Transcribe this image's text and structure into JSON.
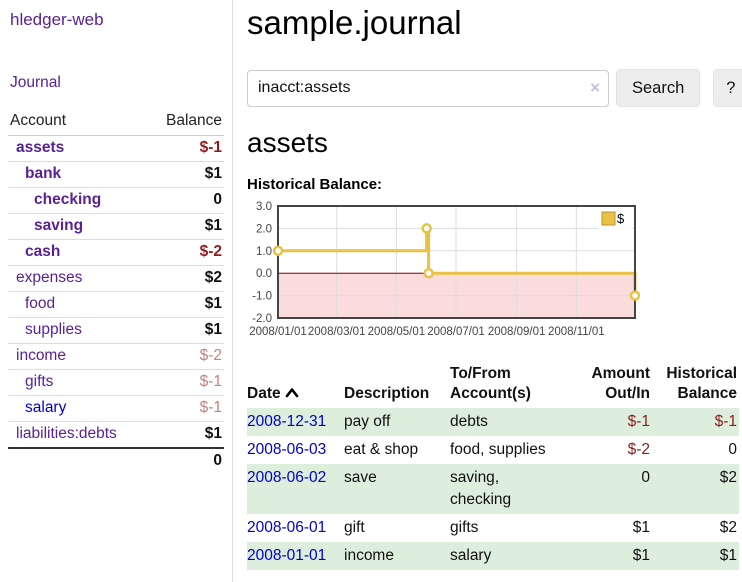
{
  "sidebar": {
    "brand": "hledger-web",
    "nav": {
      "journal": "Journal"
    },
    "accounts_table": {
      "headers": {
        "account": "Account",
        "balance": "Balance"
      },
      "rows": [
        {
          "name": "assets",
          "name_class": "nm lvl0 emph",
          "balance": "$-1",
          "amt_class": "amt neg-strong"
        },
        {
          "name": "bank",
          "name_class": "nm lvl1 emph",
          "balance": "$1",
          "amt_class": "amt"
        },
        {
          "name": "checking",
          "name_class": "nm lvl2 emph",
          "balance": "0",
          "amt_class": "amt"
        },
        {
          "name": "saving",
          "name_class": "nm lvl2 emph",
          "balance": "$1",
          "amt_class": "amt"
        },
        {
          "name": "cash",
          "name_class": "nm lvl1 emph",
          "balance": "$-2",
          "amt_class": "amt neg-strong"
        },
        {
          "name": "expenses",
          "name_class": "nm lvl0",
          "balance": "$2",
          "amt_class": "amt"
        },
        {
          "name": "food",
          "name_class": "nm lvl1",
          "balance": "$1",
          "amt_class": "amt"
        },
        {
          "name": "supplies",
          "name_class": "nm lvl1",
          "balance": "$1",
          "amt_class": "amt"
        },
        {
          "name": "income",
          "name_class": "nm lvl0",
          "balance": "$-2",
          "amt_class": "amt neg-light"
        },
        {
          "name": "gifts",
          "name_class": "nm lvl1",
          "balance": "$-1",
          "amt_class": "amt neg-light"
        },
        {
          "name": "salary",
          "name_class": "nm lvl1 blue",
          "balance": "$-1",
          "amt_class": "amt neg-light"
        },
        {
          "name": "liabilities:debts",
          "name_class": "nm lvl0",
          "balance": "$1",
          "amt_class": "amt"
        }
      ],
      "total": "0"
    }
  },
  "main": {
    "title": "sample.journal",
    "search": {
      "value": "inacct:assets",
      "clear_icon": "×",
      "button_label": "Search",
      "help_label": "?"
    },
    "account_heading": "assets",
    "chart_label": "Historical Balance:",
    "register": {
      "headers": {
        "date": "Date",
        "description": "Description",
        "accounts": "To/From Account(s)",
        "amount": "Amount Out/In",
        "balance": "Historical Balance"
      },
      "rows": [
        {
          "row_class": "green",
          "date": "2008-12-31",
          "description": "pay off",
          "accounts": "debts",
          "amount": "$-1",
          "amount_class": "r cell-neg",
          "balance": "$-1",
          "balance_class": "r cell-neg"
        },
        {
          "row_class": "",
          "date": "2008-06-03",
          "description": "eat & shop",
          "accounts": "food, supplies",
          "amount": "$-2",
          "amount_class": "r cell-neg",
          "balance": "0",
          "balance_class": "r"
        },
        {
          "row_class": "green",
          "date": "2008-06-02",
          "description": "save",
          "accounts": "saving, checking",
          "amount": "0",
          "amount_class": "r",
          "balance": "$2",
          "balance_class": "r"
        },
        {
          "row_class": "",
          "date": "2008-06-01",
          "description": "gift",
          "accounts": "gifts",
          "amount": "$1",
          "amount_class": "r",
          "balance": "$2",
          "balance_class": "r"
        },
        {
          "row_class": "green",
          "date": "2008-01-01",
          "description": "income",
          "accounts": "salary",
          "amount": "$1",
          "amount_class": "r",
          "balance": "$1",
          "balance_class": "r"
        }
      ]
    }
  },
  "chart_data": {
    "type": "line",
    "subtype": "step-after",
    "title": "Historical Balance",
    "xlabel": "",
    "ylabel": "",
    "xrange": [
      "2008-01-01",
      "2008-12-31"
    ],
    "ylim": [
      -2,
      3
    ],
    "yticks": [
      3,
      2,
      1,
      0,
      -1,
      -2
    ],
    "ytick_labels": [
      "3.0",
      "2.0",
      "1.0",
      "0.0",
      "-1.0",
      "-2.0"
    ],
    "xticks": [
      "2008-01-01",
      "2008-03-01",
      "2008-05-01",
      "2008-07-01",
      "2008-09-01",
      "2008-11-01"
    ],
    "xtick_labels": [
      "2008/01/01",
      "2008/03/01",
      "2008/05/01",
      "2008/07/01",
      "2008/09/01",
      "2008/11/01"
    ],
    "grid": true,
    "legend_position": "top-right",
    "series": [
      {
        "name": "$",
        "points": [
          {
            "x": "2008-01-01",
            "y": 1
          },
          {
            "x": "2008-06-01",
            "y": 2
          },
          {
            "x": "2008-06-03",
            "y": 0
          },
          {
            "x": "2008-12-31",
            "y": -1
          }
        ]
      }
    ],
    "colors": {
      "line": "#e9c143",
      "legend_swatch_border": "#b89530",
      "negative_fill": "#fbdcdc",
      "zero_line": "#8b0000",
      "grid": "#dddddd",
      "plot_border": "#444444",
      "tick_text": "#444444"
    }
  }
}
